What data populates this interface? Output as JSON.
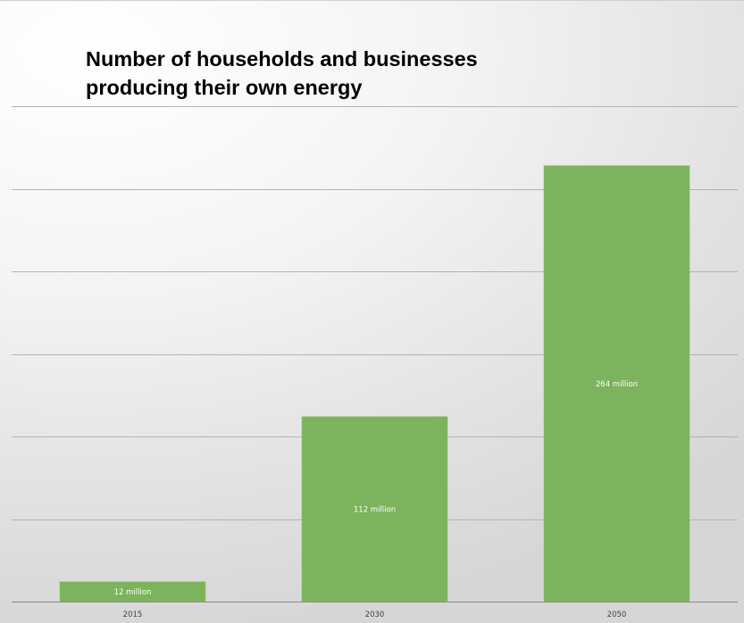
{
  "chart_data": {
    "type": "bar",
    "title": "Number of households and businesses producing their own energy",
    "xlabel": "",
    "ylabel": "",
    "categories": [
      "2015",
      "2030",
      "2050"
    ],
    "values": [
      12,
      112,
      264
    ],
    "data_labels": [
      "12 million",
      "112 million",
      "264 million"
    ],
    "ylim": [
      0,
      300
    ],
    "y_gridline_step": 50,
    "grid": true,
    "legend": "none",
    "colors": {
      "bar": "#7cb35d",
      "bar_edge": "#8cc26c",
      "gridline": "#b3b3b3",
      "axis": "#8a8a8a"
    }
  }
}
